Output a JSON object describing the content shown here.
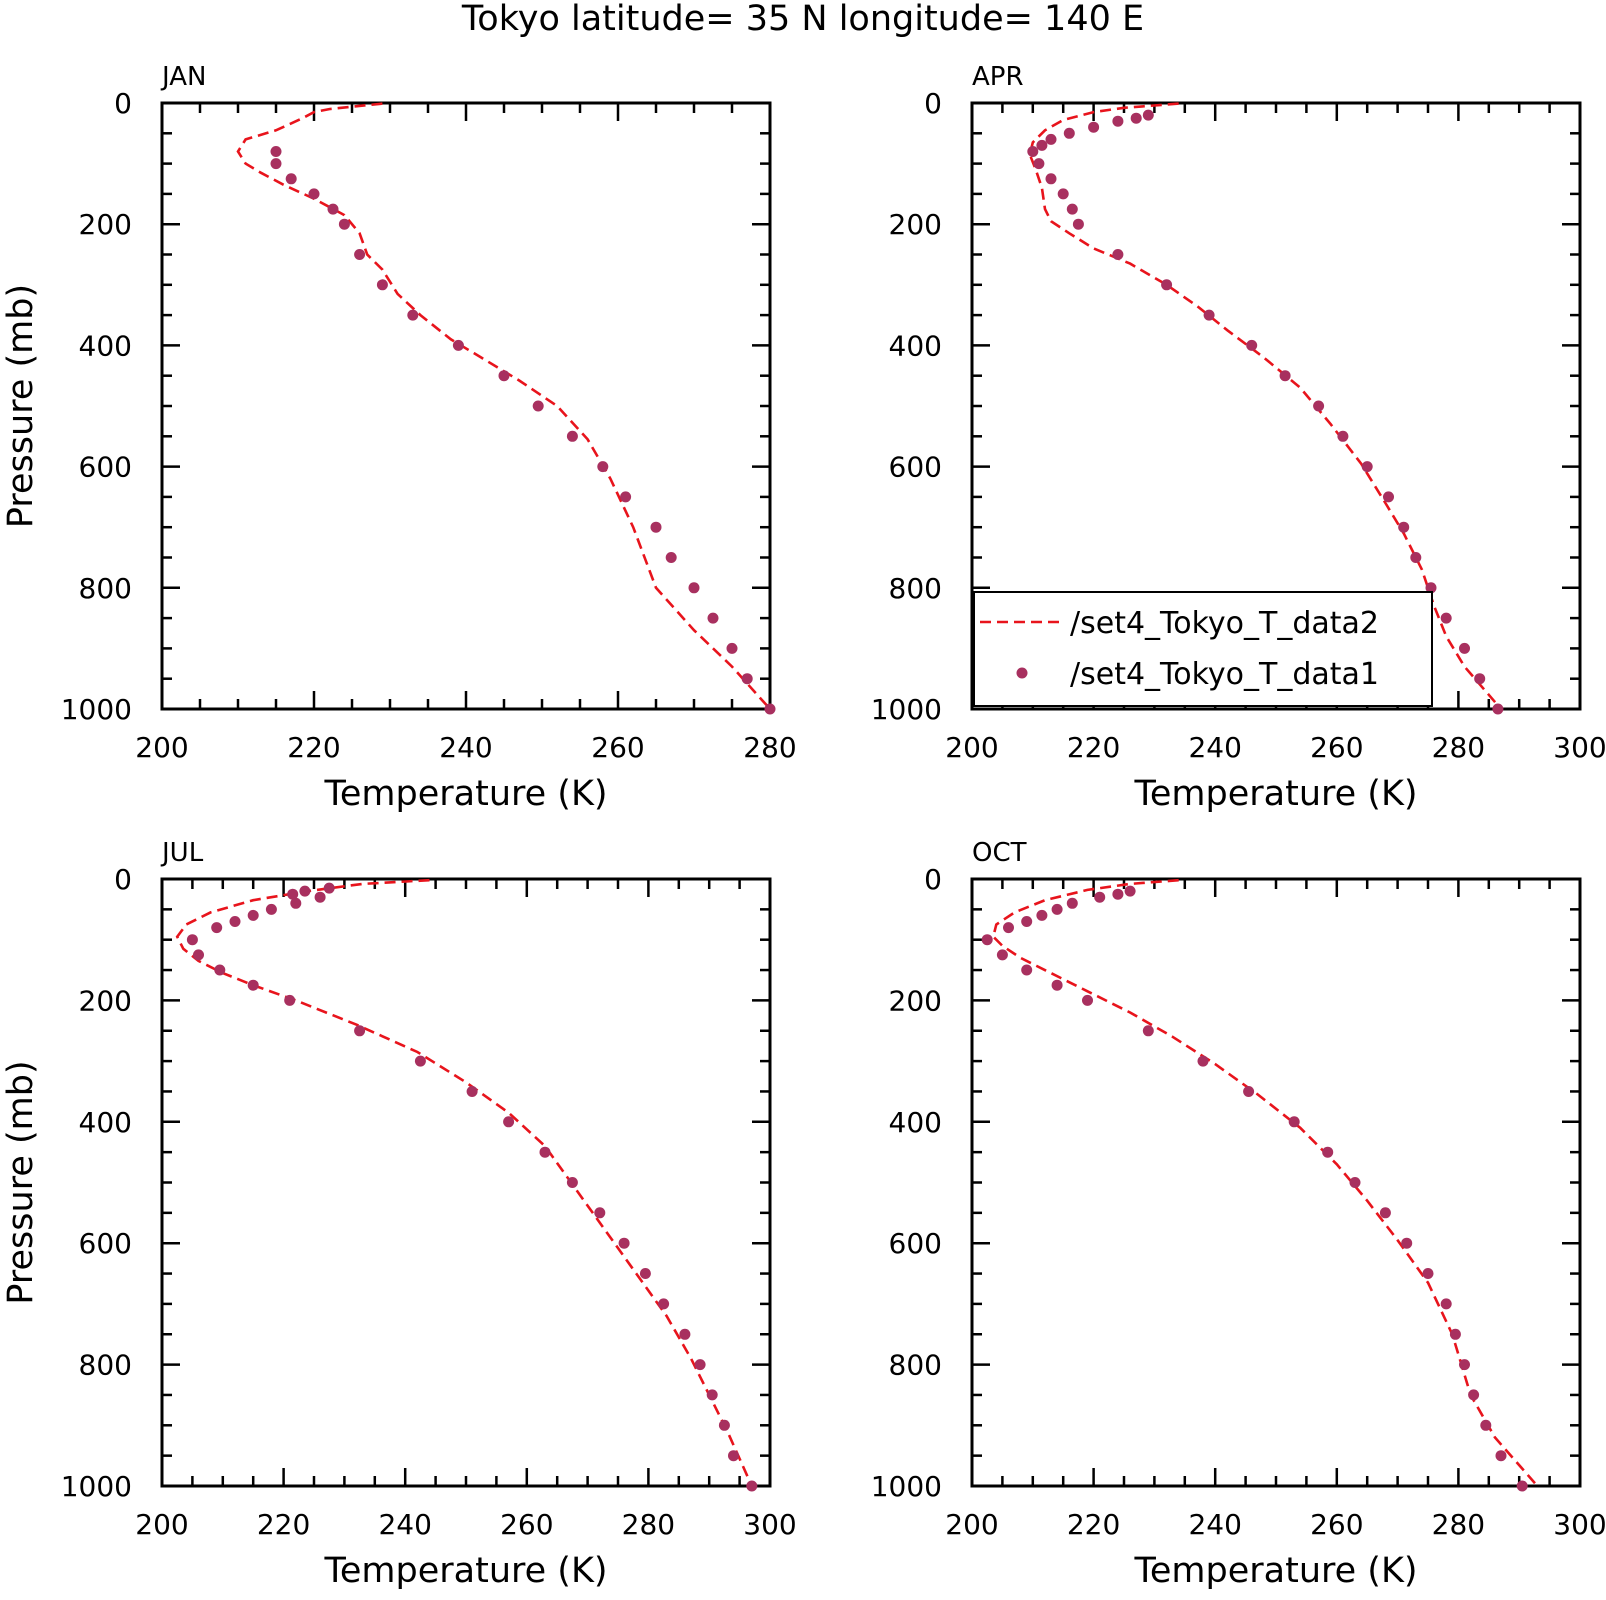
{
  "title": "Tokyo  latitude= 35 N longitude= 140 E",
  "colors": {
    "data2": "#e8141c",
    "data1": "#a8305f",
    "axis": "#000000"
  },
  "series_names": {
    "data2": "/set4_Tokyo_T_data2",
    "data1": "/set4_Tokyo_T_data1"
  },
  "chart_data": [
    {
      "type": "line",
      "panel_label": "JAN",
      "xlabel": "Temperature (K)",
      "ylabel": "Pressure (mb)",
      "xlim": [
        200,
        280
      ],
      "ylim": [
        1000,
        0
      ],
      "xticks": [
        200,
        220,
        240,
        260,
        280
      ],
      "yticks": [
        0,
        200,
        400,
        600,
        800,
        1000
      ],
      "legend": "none",
      "series": [
        {
          "name": "/set4_Tokyo_T_data2",
          "style": "dashed-line",
          "points": [
            [
              229,
              1
            ],
            [
              222,
              10
            ],
            [
              220,
              15
            ],
            [
              218.5,
              25
            ],
            [
              215,
              45
            ],
            [
              211,
              60
            ],
            [
              210,
              80
            ],
            [
              211,
              100
            ],
            [
              213,
              115
            ],
            [
              216,
              135
            ],
            [
              220,
              158
            ],
            [
              224,
              185
            ],
            [
              226,
              215
            ],
            [
              227,
              250
            ],
            [
              229,
              275
            ],
            [
              231,
              315
            ],
            [
              234,
              350
            ],
            [
              238,
              390
            ],
            [
              242,
              420
            ],
            [
              247,
              458
            ],
            [
              252,
              500
            ],
            [
              256,
              555
            ],
            [
              259,
              620
            ],
            [
              262,
              700
            ],
            [
              265,
              800
            ],
            [
              270,
              870
            ],
            [
              275,
              930
            ],
            [
              280,
              1000
            ]
          ]
        },
        {
          "name": "/set4_Tokyo_T_data1",
          "style": "markers",
          "points": [
            [
              215,
              80
            ],
            [
              215,
              100
            ],
            [
              217,
              125
            ],
            [
              220,
              150
            ],
            [
              222.5,
              175
            ],
            [
              224,
              200
            ],
            [
              226,
              250
            ],
            [
              229,
              300
            ],
            [
              233,
              350
            ],
            [
              239,
              400
            ],
            [
              245,
              450
            ],
            [
              249.5,
              500
            ],
            [
              254,
              550
            ],
            [
              258,
              600
            ],
            [
              261,
              650
            ],
            [
              265,
              700
            ],
            [
              267,
              750
            ],
            [
              270,
              800
            ],
            [
              272.5,
              850
            ],
            [
              275,
              900
            ],
            [
              277,
              950
            ],
            [
              280,
              1000
            ]
          ]
        }
      ]
    },
    {
      "type": "line",
      "panel_label": "APR",
      "xlabel": "Temperature (K)",
      "ylabel": "",
      "xlim": [
        200,
        300
      ],
      "ylim": [
        1000,
        0
      ],
      "xticks": [
        200,
        220,
        240,
        260,
        280,
        300
      ],
      "yticks": [
        0,
        200,
        400,
        600,
        800,
        1000
      ],
      "legend": "lower-left",
      "series": [
        {
          "name": "/set4_Tokyo_T_data2",
          "style": "dashed-line",
          "points": [
            [
              234,
              1
            ],
            [
              225,
              8
            ],
            [
              220,
              15
            ],
            [
              215,
              28
            ],
            [
              212,
              45
            ],
            [
              210,
              65
            ],
            [
              209.5,
              85
            ],
            [
              210.5,
              110
            ],
            [
              211.5,
              140
            ],
            [
              212,
              175
            ],
            [
              213,
              195
            ],
            [
              216,
              215
            ],
            [
              220,
              240
            ],
            [
              226,
              265
            ],
            [
              232,
              300
            ],
            [
              237,
              335
            ],
            [
              242,
              375
            ],
            [
              248,
              420
            ],
            [
              254,
              470
            ],
            [
              259,
              530
            ],
            [
              264,
              595
            ],
            [
              268,
              660
            ],
            [
              271,
              710
            ],
            [
              274,
              770
            ],
            [
              276,
              830
            ],
            [
              278,
              880
            ],
            [
              281,
              930
            ],
            [
              287,
              1000
            ]
          ]
        },
        {
          "name": "/set4_Tokyo_T_data1",
          "style": "markers",
          "points": [
            [
              229,
              20
            ],
            [
              227,
              25
            ],
            [
              224,
              30
            ],
            [
              220,
              40
            ],
            [
              216,
              50
            ],
            [
              213,
              60
            ],
            [
              211.5,
              70
            ],
            [
              210,
              80
            ],
            [
              211,
              100
            ],
            [
              213,
              125
            ],
            [
              215,
              150
            ],
            [
              216.5,
              175
            ],
            [
              217.5,
              200
            ],
            [
              224,
              250
            ],
            [
              232,
              300
            ],
            [
              239,
              350
            ],
            [
              246,
              400
            ],
            [
              251.5,
              450
            ],
            [
              257,
              500
            ],
            [
              261,
              550
            ],
            [
              265,
              600
            ],
            [
              268.5,
              650
            ],
            [
              271,
              700
            ],
            [
              273,
              750
            ],
            [
              275.5,
              800
            ],
            [
              278,
              850
            ],
            [
              281,
              900
            ],
            [
              283.5,
              950
            ],
            [
              286.5,
              1000
            ]
          ]
        }
      ]
    },
    {
      "type": "line",
      "panel_label": "JUL",
      "xlabel": "Temperature (K)",
      "ylabel": "Pressure (mb)",
      "xlim": [
        200,
        300
      ],
      "ylim": [
        1000,
        0
      ],
      "xticks": [
        200,
        220,
        240,
        260,
        280,
        300
      ],
      "yticks": [
        0,
        200,
        400,
        600,
        800,
        1000
      ],
      "legend": "none",
      "series": [
        {
          "name": "/set4_Tokyo_T_data2",
          "style": "dashed-line",
          "points": [
            [
              244,
              2
            ],
            [
              233,
              8
            ],
            [
              224,
              20
            ],
            [
              215,
              35
            ],
            [
              208,
              55
            ],
            [
              204,
              75
            ],
            [
              202.5,
              95
            ],
            [
              203.5,
              115
            ],
            [
              206,
              135
            ],
            [
              210,
              155
            ],
            [
              215,
              175
            ],
            [
              222,
              200
            ],
            [
              232,
              240
            ],
            [
              242,
              285
            ],
            [
              250,
              335
            ],
            [
              257,
              385
            ],
            [
              263,
              440
            ],
            [
              268,
              510
            ],
            [
              273,
              580
            ],
            [
              278,
              650
            ],
            [
              283,
              720
            ],
            [
              287,
              790
            ],
            [
              290,
              850
            ],
            [
              293,
              910
            ],
            [
              297,
              1000
            ]
          ]
        },
        {
          "name": "/set4_Tokyo_T_data1",
          "style": "markers",
          "points": [
            [
              227.5,
              15
            ],
            [
              223.5,
              20
            ],
            [
              221.5,
              25
            ],
            [
              226,
              30
            ],
            [
              222,
              40
            ],
            [
              218,
              50
            ],
            [
              215,
              60
            ],
            [
              212,
              70
            ],
            [
              209,
              80
            ],
            [
              205,
              100
            ],
            [
              206,
              125
            ],
            [
              209.5,
              150
            ],
            [
              215,
              175
            ],
            [
              221,
              200
            ],
            [
              232.5,
              250
            ],
            [
              242.5,
              300
            ],
            [
              251,
              350
            ],
            [
              257,
              400
            ],
            [
              263,
              450
            ],
            [
              267.5,
              500
            ],
            [
              272,
              550
            ],
            [
              276,
              600
            ],
            [
              279.5,
              650
            ],
            [
              282.5,
              700
            ],
            [
              286,
              750
            ],
            [
              288.5,
              800
            ],
            [
              290.5,
              850
            ],
            [
              292.5,
              900
            ],
            [
              294,
              950
            ],
            [
              297,
              1000
            ]
          ]
        }
      ]
    },
    {
      "type": "line",
      "panel_label": "OCT",
      "xlabel": "Temperature (K)",
      "ylabel": "",
      "xlim": [
        200,
        300
      ],
      "ylim": [
        1000,
        0
      ],
      "xticks": [
        200,
        220,
        240,
        260,
        280,
        300
      ],
      "yticks": [
        0,
        200,
        400,
        600,
        800,
        1000
      ],
      "legend": "none",
      "series": [
        {
          "name": "/set4_Tokyo_T_data2",
          "style": "dashed-line",
          "points": [
            [
              234,
              2
            ],
            [
              226,
              8
            ],
            [
              219,
              18
            ],
            [
              212,
              35
            ],
            [
              207,
              55
            ],
            [
              204,
              75
            ],
            [
              203.5,
              95
            ],
            [
              205,
              110
            ],
            [
              208,
              130
            ],
            [
              213,
              155
            ],
            [
              219,
              185
            ],
            [
              226,
              220
            ],
            [
              233,
              260
            ],
            [
              240,
              305
            ],
            [
              247,
              355
            ],
            [
              254,
              410
            ],
            [
              260,
              470
            ],
            [
              265,
              530
            ],
            [
              270,
              595
            ],
            [
              275,
              665
            ],
            [
              279,
              750
            ],
            [
              282,
              850
            ],
            [
              286,
              920
            ],
            [
              293,
              1000
            ]
          ]
        },
        {
          "name": "/set4_Tokyo_T_data1",
          "style": "markers",
          "points": [
            [
              226,
              20
            ],
            [
              224,
              25
            ],
            [
              221,
              30
            ],
            [
              216.5,
              40
            ],
            [
              214,
              50
            ],
            [
              211.5,
              60
            ],
            [
              209,
              70
            ],
            [
              206,
              80
            ],
            [
              202.5,
              100
            ],
            [
              205,
              125
            ],
            [
              209,
              150
            ],
            [
              214,
              175
            ],
            [
              219,
              200
            ],
            [
              229,
              250
            ],
            [
              238,
              300
            ],
            [
              245.5,
              350
            ],
            [
              253,
              400
            ],
            [
              258.5,
              450
            ],
            [
              263,
              500
            ],
            [
              268,
              550
            ],
            [
              271.5,
              600
            ],
            [
              275,
              650
            ],
            [
              278,
              700
            ],
            [
              279.5,
              750
            ],
            [
              281,
              800
            ],
            [
              282.5,
              850
            ],
            [
              284.5,
              900
            ],
            [
              287,
              950
            ],
            [
              290.5,
              1000
            ]
          ]
        }
      ]
    }
  ]
}
